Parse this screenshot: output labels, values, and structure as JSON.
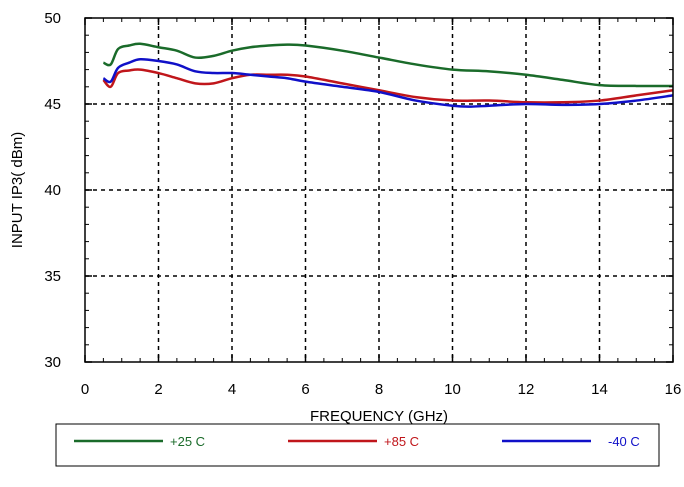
{
  "chart_data": {
    "type": "line",
    "xlabel": "FREQUENCY (GHz)",
    "ylabel": "INPUT IP3( dBm)",
    "xlim": [
      0,
      16
    ],
    "ylim": [
      30,
      50
    ],
    "x_ticks": [
      0,
      2,
      4,
      6,
      8,
      10,
      12,
      14,
      16
    ],
    "y_ticks": [
      30,
      35,
      40,
      45,
      50
    ],
    "x_tick_labels": [
      "0",
      "2",
      "4",
      "6",
      "8",
      "10",
      "12",
      "14",
      "16"
    ],
    "y_tick_labels": [
      "30",
      "35",
      "40",
      "45",
      "50"
    ],
    "grid": true,
    "legend_position": "bottom",
    "series": [
      {
        "name": "+25 C",
        "color": "#1a6b2a",
        "x": [
          0.5,
          0.7,
          0.9,
          1.2,
          1.5,
          2.0,
          2.5,
          3.0,
          3.5,
          4.0,
          4.5,
          5.0,
          5.5,
          6.0,
          7.0,
          8.0,
          9.0,
          10.0,
          11.0,
          12.0,
          13.0,
          14.0,
          15.0,
          16.0
        ],
        "y": [
          47.4,
          47.3,
          48.2,
          48.4,
          48.5,
          48.3,
          48.1,
          47.7,
          47.8,
          48.1,
          48.3,
          48.4,
          48.45,
          48.4,
          48.1,
          47.7,
          47.3,
          47.0,
          46.9,
          46.7,
          46.4,
          46.1,
          46.05,
          46.05
        ]
      },
      {
        "name": "+85 C",
        "color": "#c0161b",
        "x": [
          0.5,
          0.7,
          0.9,
          1.2,
          1.5,
          2.0,
          2.5,
          3.0,
          3.5,
          4.0,
          4.5,
          5.0,
          5.5,
          6.0,
          7.0,
          8.0,
          9.0,
          10.0,
          11.0,
          12.0,
          13.0,
          14.0,
          15.0,
          16.0
        ],
        "y": [
          46.4,
          46.0,
          46.8,
          46.95,
          47.0,
          46.8,
          46.5,
          46.2,
          46.2,
          46.5,
          46.7,
          46.7,
          46.7,
          46.6,
          46.2,
          45.8,
          45.4,
          45.2,
          45.2,
          45.1,
          45.1,
          45.2,
          45.5,
          45.8
        ]
      },
      {
        "name": "-40 C",
        "color": "#1010c8",
        "x": [
          0.5,
          0.7,
          0.9,
          1.2,
          1.5,
          2.0,
          2.5,
          3.0,
          3.5,
          4.0,
          4.5,
          5.0,
          5.5,
          6.0,
          7.0,
          8.0,
          9.0,
          10.0,
          10.5,
          11.0,
          12.0,
          13.0,
          14.0,
          15.0,
          16.0
        ],
        "y": [
          46.5,
          46.3,
          47.1,
          47.4,
          47.6,
          47.5,
          47.3,
          46.9,
          46.8,
          46.8,
          46.7,
          46.6,
          46.5,
          46.3,
          46.0,
          45.7,
          45.2,
          44.9,
          44.85,
          44.9,
          45.0,
          44.95,
          45.0,
          45.2,
          45.5
        ]
      }
    ]
  }
}
